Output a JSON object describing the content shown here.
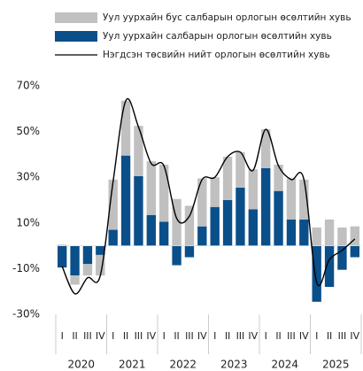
{
  "chart_data": {
    "type": "stacked_bar_line",
    "categories": [
      "I",
      "II",
      "III",
      "IV",
      "I",
      "II",
      "III",
      "IV",
      "I",
      "II",
      "III",
      "IV",
      "I",
      "II",
      "III",
      "IV",
      "I",
      "II",
      "III",
      "IV",
      "I",
      "II",
      "III",
      "IV"
    ],
    "groups": [
      "2020",
      "2021",
      "2022",
      "2023",
      "2024",
      "2025"
    ],
    "series": [
      {
        "name": "Уул уурхайн бус салбарын орлогын өсөлтийн хувь",
        "color": "#c0c0c0",
        "kind": "bar",
        "values": [
          0.5,
          -4,
          -5,
          -9,
          22,
          24,
          22,
          23.5,
          25,
          20.5,
          17.5,
          21,
          13,
          19,
          15.5,
          17.5,
          17,
          11.5,
          18,
          17.5,
          8,
          11.5,
          8,
          8.5
        ]
      },
      {
        "name": "Уул уурхайн салбарын орлогын өсөлтийн хувь",
        "color": "#0a4f8a",
        "kind": "bar",
        "values": [
          -9.5,
          -13,
          -8,
          -4,
          7,
          39.5,
          30.5,
          13.5,
          10.5,
          -8.5,
          -5,
          8.5,
          17,
          20,
          25.5,
          16,
          34,
          24,
          11.5,
          11.5,
          -24.5,
          -18,
          -10.5,
          -5
        ]
      },
      {
        "name": "Нэгдсэн төсвийн нийт орлогын өсөлтийн хувь",
        "color": "#000000",
        "kind": "line",
        "values": [
          -9,
          -21,
          -14,
          -13,
          28,
          63.5,
          52,
          36,
          35,
          12,
          13,
          29,
          30,
          39,
          41,
          33,
          51,
          35,
          29,
          29,
          -16,
          -6,
          -2,
          3
        ]
      }
    ],
    "ylim": [
      -30,
      70
    ],
    "yticks": [
      {
        "value": -30,
        "label": "-30%"
      },
      {
        "value": -10,
        "label": "-10%"
      },
      {
        "value": 10,
        "label": "10%"
      },
      {
        "value": 30,
        "label": "30%"
      },
      {
        "value": 50,
        "label": "50%"
      },
      {
        "value": 70,
        "label": "70%"
      }
    ]
  }
}
